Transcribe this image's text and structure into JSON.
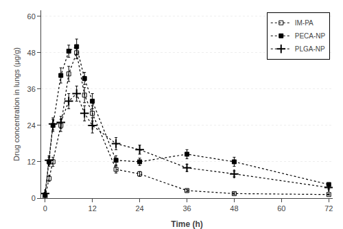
{
  "chart_data": {
    "type": "line",
    "xlabel": "Time (h)",
    "ylabel": "Drug concentration in lungs (μg/g)",
    "x": [
      0,
      1,
      2,
      4,
      6,
      8,
      10,
      12,
      18,
      24,
      36,
      48,
      72
    ],
    "xlim": [
      -1,
      73
    ],
    "xticks": [
      0,
      12,
      24,
      36,
      48,
      60,
      72
    ],
    "ylim": [
      0,
      62
    ],
    "yticks": [
      0,
      12,
      24,
      36,
      48,
      60
    ],
    "grid": true,
    "legend": "upper right",
    "color": "black",
    "line_style": "dotted",
    "series": [
      {
        "name": "IM-PA",
        "marker": "square-open",
        "values": [
          0.5,
          6.5,
          12.0,
          24.0,
          41.0,
          48.0,
          34.0,
          28.0,
          9.5,
          8.0,
          2.5,
          1.5,
          1.2
        ],
        "errors": [
          0.3,
          1.0,
          1.5,
          2.0,
          2.5,
          2.0,
          2.5,
          2.5,
          1.2,
          0.8,
          0.4,
          0.3,
          0.2
        ]
      },
      {
        "name": "PECA-NP",
        "marker": "square",
        "values": [
          1.0,
          12.0,
          24.0,
          40.5,
          48.5,
          50.0,
          39.5,
          32.0,
          12.5,
          12.0,
          14.5,
          12.0,
          4.5
        ],
        "errors": [
          0.3,
          1.5,
          2.0,
          2.5,
          2.0,
          2.5,
          2.0,
          2.5,
          1.5,
          1.2,
          1.5,
          1.5,
          0.5
        ]
      },
      {
        "name": "PLGA-NP",
        "marker": "plus",
        "values": [
          1.5,
          12.5,
          24.5,
          25.0,
          32.0,
          34.5,
          28.0,
          24.0,
          18.0,
          16.0,
          10.0,
          8.0,
          3.5
        ],
        "errors": [
          0.4,
          1.5,
          2.0,
          2.0,
          2.5,
          2.5,
          2.5,
          2.5,
          2.0,
          1.5,
          1.2,
          1.0,
          0.5
        ]
      }
    ]
  }
}
